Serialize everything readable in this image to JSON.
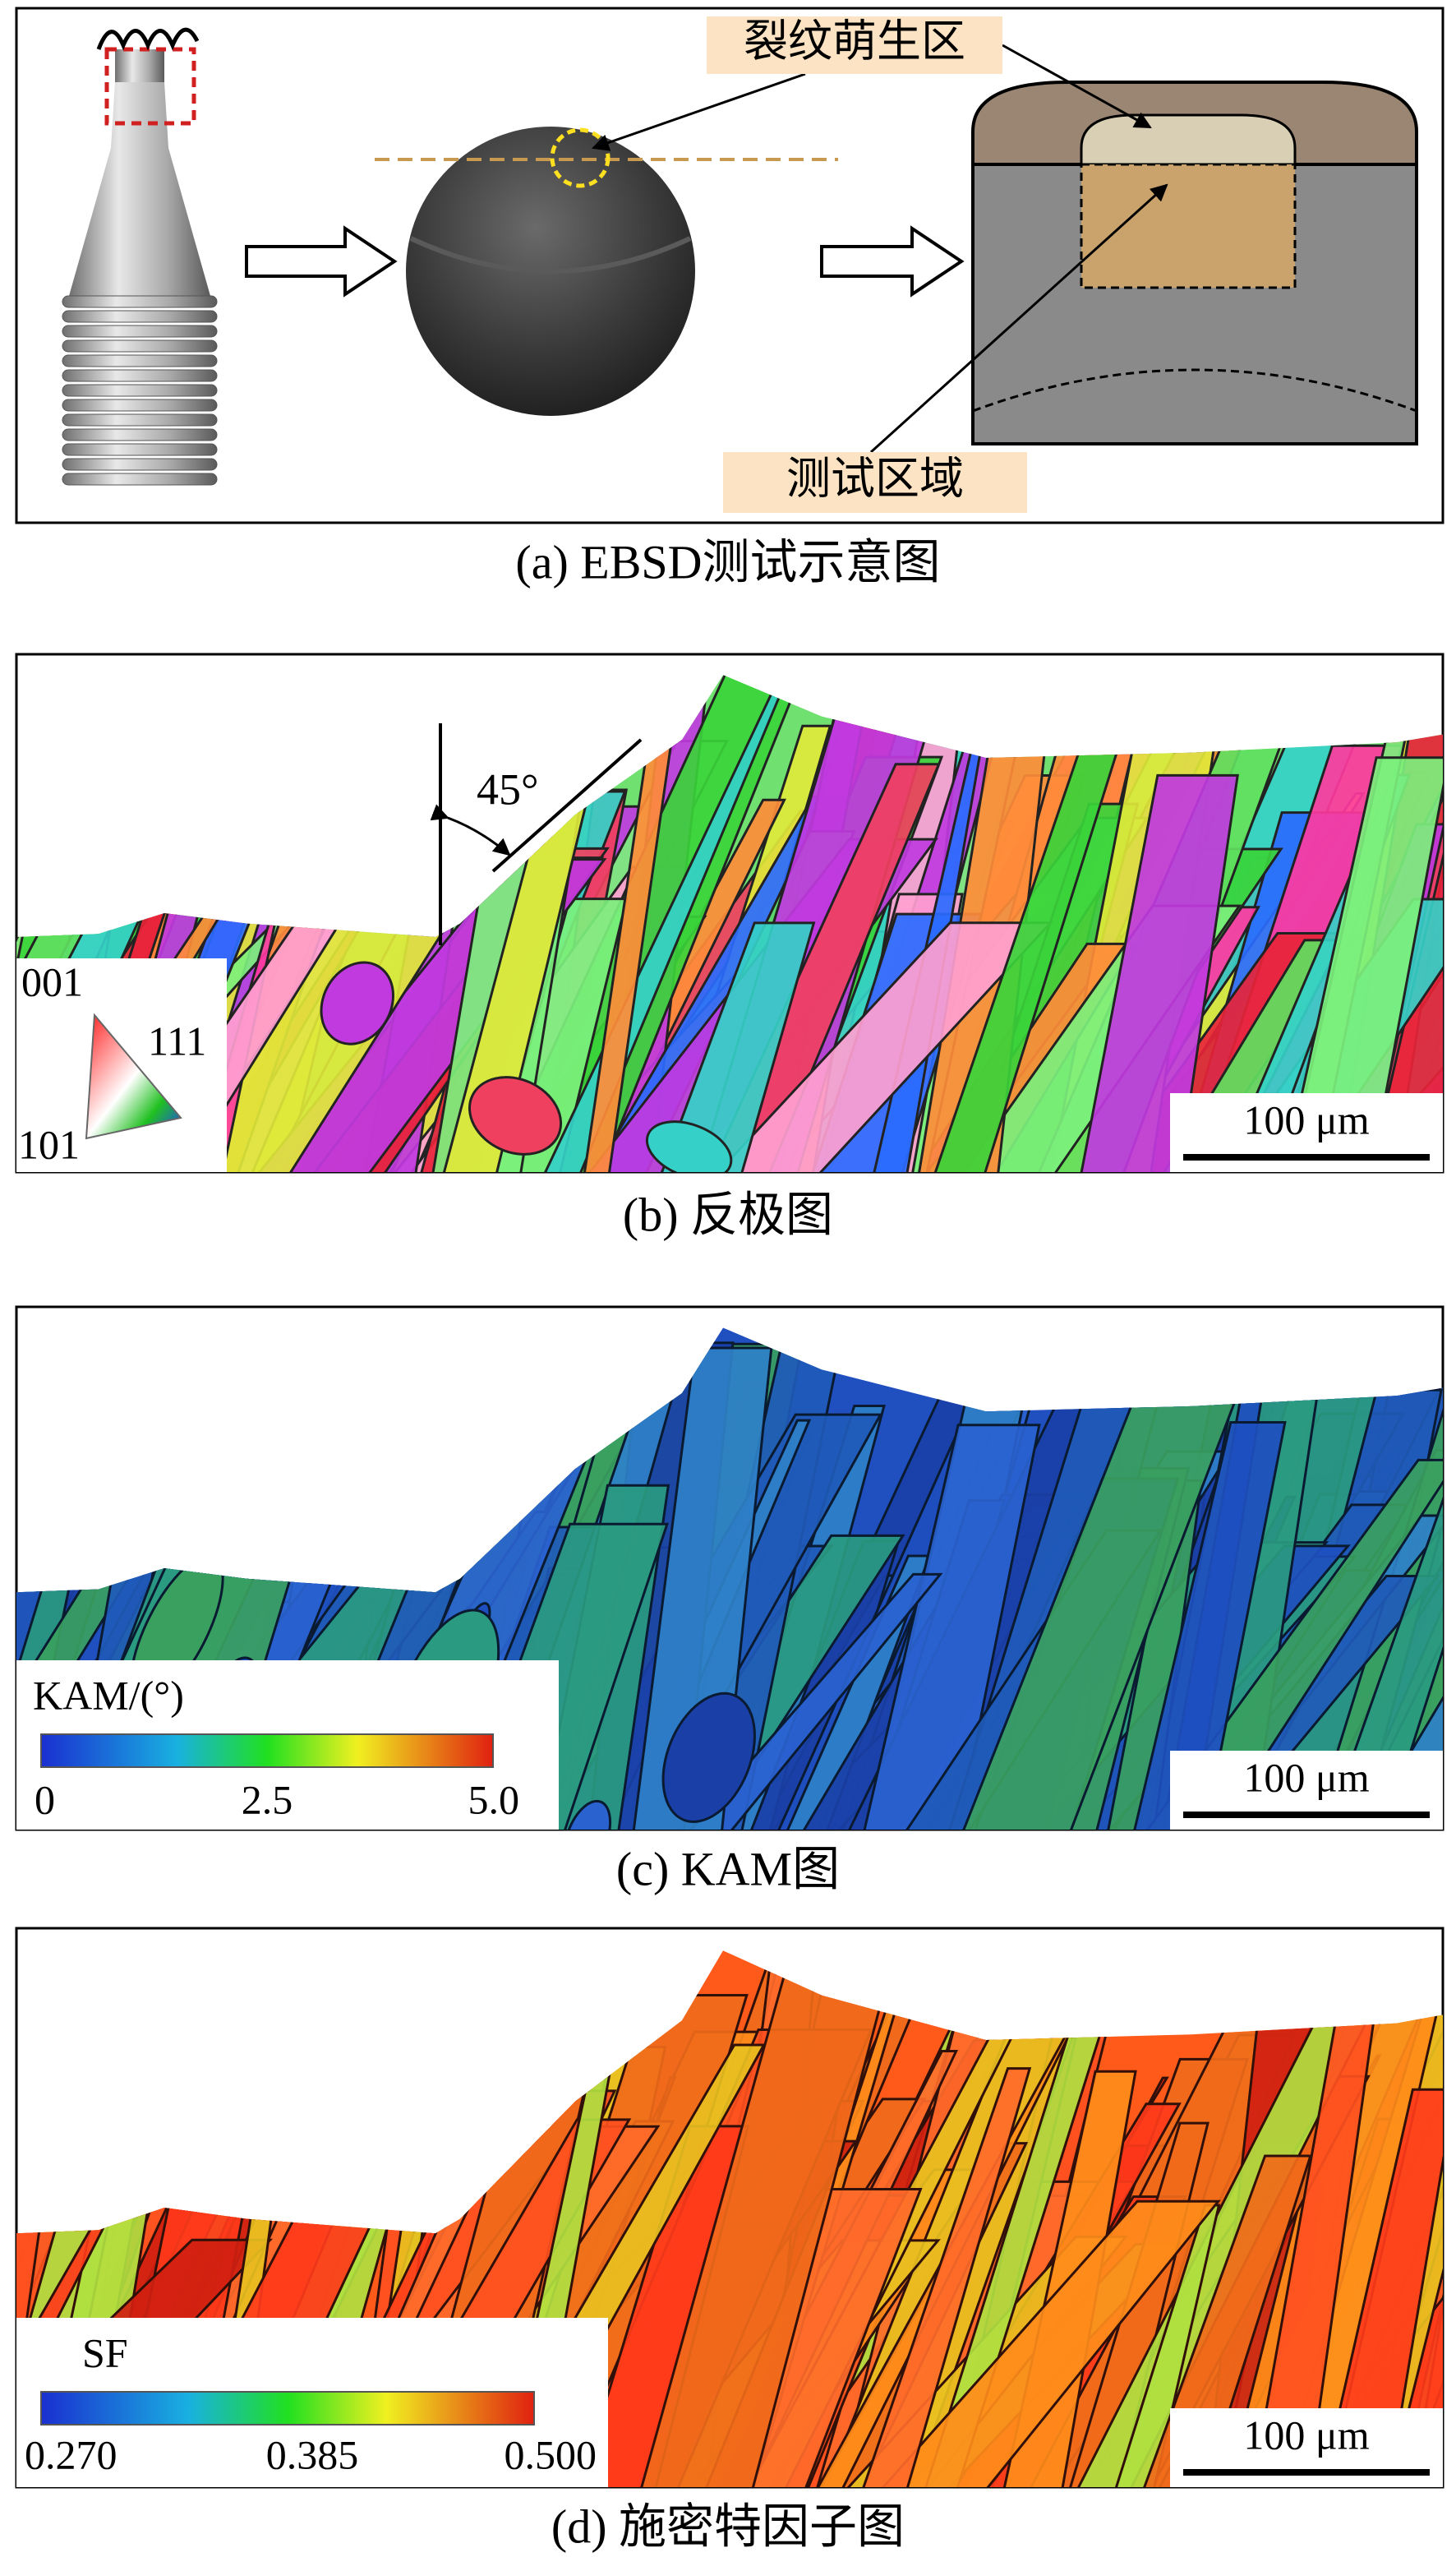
{
  "panel_a": {
    "labels": [
      "裂纹萌生区",
      "测试区域"
    ],
    "caption": "(a) EBSD测试示意图"
  },
  "panel_b": {
    "angle_label": "45°",
    "legend_labels": [
      "001",
      "111",
      "101"
    ],
    "scale_bar": "100 μm",
    "caption": "(b) 反极图"
  },
  "panel_c": {
    "legend_title": "KAM/(°)",
    "legend_ticks": [
      "0",
      "2.5",
      "5.0"
    ],
    "scale_bar": "100 μm",
    "caption": "(c) KAM图"
  },
  "panel_d": {
    "legend_title": "SF",
    "legend_ticks": [
      "0.270",
      "0.385",
      "0.500"
    ],
    "scale_bar": "100 μm",
    "caption": "(d) 施密特因子图"
  }
}
